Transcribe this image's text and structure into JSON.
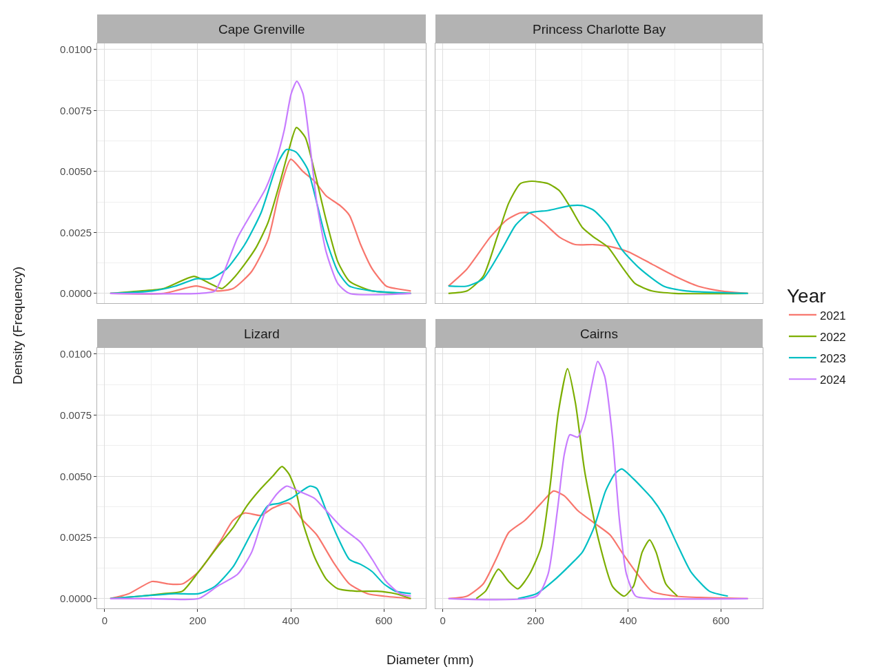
{
  "chart_data": [
    {
      "type": "line",
      "title": "Cape Grenville",
      "ylabel": "Density (Frequency)",
      "legend_title": "Year",
      "legend": "right",
      "grid": true,
      "tick_labels": "y",
      "xlim": [
        -16,
        690
      ],
      "xticks": [
        {
          "value": 0,
          "label": null
        },
        {
          "value": 200,
          "label": null
        },
        {
          "value": 400,
          "label": null
        },
        {
          "value": 600,
          "label": null
        }
      ],
      "ylim": [
        -0.0004,
        0.01025
      ],
      "yticks": [
        {
          "value": 0,
          "label": "0.0000"
        },
        {
          "value": 0.0025,
          "label": "0.0025"
        },
        {
          "value": 0.005,
          "label": "0.0050"
        },
        {
          "value": 0.0075,
          "label": "0.0075"
        },
        {
          "value": 0.01,
          "label": "0.0100"
        }
      ],
      "series": [
        {
          "name": "2021",
          "color": "#f8766d",
          "x": [
            12,
            127,
            197,
            242,
            276,
            316,
            351,
            376,
            400,
            426,
            451,
            476,
            506,
            526,
            550,
            575,
            605,
            625,
            658
          ],
          "values": [
            0,
            0,
            0.0003,
            0.0001,
            0.0002,
            0.0009,
            0.0022,
            0.0042,
            0.0055,
            0.005,
            0.0046,
            0.004,
            0.0036,
            0.0032,
            0.002,
            0.001,
            0.0003,
            0.0002,
            0.0001
          ]
        },
        {
          "name": "2022",
          "color": "#7cae00",
          "x": [
            12,
            77,
            127,
            192,
            227,
            252,
            276,
            301,
            326,
            351,
            376,
            396,
            412,
            431,
            451,
            476,
            501,
            526,
            575,
            658
          ],
          "values": [
            0,
            0.0001,
            0.0002,
            0.0007,
            0.0004,
            0.0002,
            0.0006,
            0.0012,
            0.0019,
            0.0029,
            0.0045,
            0.0059,
            0.0068,
            0.0064,
            0.005,
            0.003,
            0.0013,
            0.0005,
            0.0001,
            0
          ]
        },
        {
          "name": "2023",
          "color": "#00bfc4",
          "x": [
            12,
            102,
            152,
            197,
            227,
            262,
            301,
            336,
            371,
            391,
            411,
            436,
            456,
            476,
            501,
            526,
            575,
            658
          ],
          "values": [
            0,
            0.0001,
            0.0003,
            0.0006,
            0.0006,
            0.001,
            0.002,
            0.0033,
            0.0053,
            0.0059,
            0.0058,
            0.0051,
            0.0037,
            0.0022,
            0.0009,
            0.0003,
            0.0001,
            0
          ]
        },
        {
          "name": "2024",
          "color": "#c77cff",
          "x": [
            12,
            202,
            237,
            257,
            286,
            316,
            346,
            366,
            386,
            401,
            413,
            426,
            441,
            456,
            476,
            501,
            526,
            658
          ],
          "values": [
            0,
            0,
            0.0001,
            0.0009,
            0.0023,
            0.0033,
            0.0043,
            0.0053,
            0.0067,
            0.0082,
            0.0087,
            0.0082,
            0.0061,
            0.0037,
            0.0017,
            0.0004,
            0,
            0
          ]
        }
      ]
    },
    {
      "type": "line",
      "title": "Princess Charlotte Bay",
      "legend": "right",
      "grid": true,
      "tick_labels": false,
      "xlim": [
        -16,
        690
      ],
      "xticks": [
        {
          "value": 0,
          "label": null
        },
        {
          "value": 200,
          "label": null
        },
        {
          "value": 400,
          "label": null
        },
        {
          "value": 600,
          "label": null
        }
      ],
      "ylim": [
        -0.0004,
        0.01025
      ],
      "yticks": [
        {
          "value": 0,
          "label": null
        },
        {
          "value": 0.0025,
          "label": null
        },
        {
          "value": 0.005,
          "label": null
        },
        {
          "value": 0.0075,
          "label": null
        },
        {
          "value": 0.01,
          "label": null
        }
      ],
      "series": [
        {
          "name": "2021",
          "color": "#f8766d",
          "x": [
            12,
            52,
            102,
            137,
            167,
            187,
            217,
            252,
            286,
            326,
            366,
            401,
            451,
            501,
            550,
            600,
            658
          ],
          "values": [
            0.0003,
            0.001,
            0.0023,
            0.003,
            0.0033,
            0.0033,
            0.0029,
            0.0023,
            0.002,
            0.002,
            0.0019,
            0.0017,
            0.0012,
            0.0007,
            0.0003,
            0.0001,
            0
          ]
        },
        {
          "name": "2022",
          "color": "#7cae00",
          "x": [
            12,
            52,
            87,
            117,
            142,
            167,
            192,
            227,
            252,
            276,
            301,
            326,
            356,
            386,
            415,
            451,
            501,
            658
          ],
          "values": [
            0,
            0.0001,
            0.0007,
            0.0023,
            0.0037,
            0.0045,
            0.0046,
            0.0045,
            0.0042,
            0.0035,
            0.0027,
            0.0023,
            0.0019,
            0.0011,
            0.0004,
            0.0001,
            0,
            0
          ]
        },
        {
          "name": "2023",
          "color": "#00bfc4",
          "x": [
            12,
            52,
            87,
            127,
            157,
            187,
            227,
            276,
            301,
            326,
            356,
            386,
            426,
            476,
            526,
            658
          ],
          "values": [
            0.0003,
            0.0003,
            0.0006,
            0.0018,
            0.0028,
            0.0033,
            0.0034,
            0.0036,
            0.0036,
            0.0034,
            0.0028,
            0.0018,
            0.001,
            0.0003,
            0.0001,
            0
          ]
        }
      ]
    },
    {
      "type": "line",
      "title": "Lizard",
      "xlabel": "Diameter (mm)",
      "legend": "right",
      "grid": true,
      "xlim": [
        -16,
        690
      ],
      "xticks": [
        0,
        200,
        400,
        600
      ],
      "ylim": [
        -0.0004,
        0.01025
      ],
      "yticks": [
        {
          "value": 0,
          "label": "0.0000"
        },
        {
          "value": 0.0025,
          "label": "0.0025"
        },
        {
          "value": 0.005,
          "label": "0.0050"
        },
        {
          "value": 0.0075,
          "label": "0.0075"
        },
        {
          "value": 0.01,
          "label": "0.0100"
        }
      ],
      "series": [
        {
          "name": "2021",
          "color": "#f8766d",
          "x": [
            12,
            52,
            102,
            137,
            167,
            202,
            247,
            276,
            301,
            336,
            361,
            396,
            426,
            456,
            491,
            526,
            565,
            600,
            658
          ],
          "values": [
            0,
            0.0002,
            0.0007,
            0.0006,
            0.0006,
            0.0011,
            0.0023,
            0.0032,
            0.0035,
            0.0034,
            0.0037,
            0.0039,
            0.0032,
            0.0026,
            0.0015,
            0.0006,
            0.0002,
            0.0001,
            0
          ]
        },
        {
          "name": "2022",
          "color": "#7cae00",
          "x": [
            12,
            77,
            127,
            167,
            202,
            242,
            276,
            306,
            336,
            361,
            381,
            396,
            411,
            426,
            451,
            476,
            501,
            541,
            585,
            625,
            658
          ],
          "values": [
            0,
            0.0001,
            0.0002,
            0.0003,
            0.0011,
            0.0021,
            0.0029,
            0.0038,
            0.0045,
            0.005,
            0.0054,
            0.0051,
            0.0044,
            0.0031,
            0.0017,
            0.0008,
            0.0004,
            0.0003,
            0.0003,
            0.0002,
            0
          ]
        },
        {
          "name": "2023",
          "color": "#00bfc4",
          "x": [
            12,
            77,
            152,
            202,
            237,
            276,
            316,
            351,
            376,
            401,
            416,
            441,
            456,
            476,
            501,
            526,
            550,
            575,
            600,
            625,
            658
          ],
          "values": [
            0,
            0.0001,
            0.0002,
            0.0002,
            0.0005,
            0.0013,
            0.0027,
            0.0038,
            0.0039,
            0.0041,
            0.0043,
            0.0046,
            0.0045,
            0.0036,
            0.0025,
            0.0016,
            0.0014,
            0.0011,
            0.0006,
            0.0003,
            0.0002
          ]
        },
        {
          "name": "2024",
          "color": "#c77cff",
          "x": [
            12,
            102,
            202,
            242,
            286,
            316,
            346,
            371,
            391,
            416,
            451,
            476,
            510,
            550,
            575,
            605,
            635,
            658
          ],
          "values": [
            0,
            0,
            0,
            0.0005,
            0.001,
            0.0019,
            0.0036,
            0.0043,
            0.0046,
            0.0044,
            0.0041,
            0.0036,
            0.0029,
            0.0023,
            0.0016,
            0.0007,
            0.0002,
            0.0001
          ]
        }
      ]
    },
    {
      "type": "line",
      "title": "Cairns",
      "legend": "right",
      "grid": true,
      "tick_labels": "x",
      "xlim": [
        -16,
        690
      ],
      "xticks": [
        0,
        200,
        400,
        600
      ],
      "ylim": [
        -0.0004,
        0.01025
      ],
      "yticks": [
        {
          "value": 0,
          "label": null
        },
        {
          "value": 0.0025,
          "label": null
        },
        {
          "value": 0.005,
          "label": null
        },
        {
          "value": 0.0075,
          "label": null
        },
        {
          "value": 0.01,
          "label": null
        }
      ],
      "series": [
        {
          "name": "2021",
          "color": "#f8766d",
          "x": [
            12,
            52,
            87,
            117,
            142,
            177,
            212,
            239,
            262,
            291,
            326,
            361,
            386,
            416,
            451,
            501,
            658
          ],
          "values": [
            0,
            0.0001,
            0.0006,
            0.0017,
            0.0027,
            0.0032,
            0.0039,
            0.0044,
            0.0042,
            0.0036,
            0.0031,
            0.0026,
            0.0019,
            0.0011,
            0.0003,
            0.0001,
            0
          ]
        },
        {
          "name": "2022",
          "color": "#7cae00",
          "x": [
            72,
            92,
            120,
            142,
            162,
            187,
            212,
            232,
            249,
            269,
            286,
            306,
            336,
            366,
            391,
            411,
            430,
            446,
            460,
            481,
            506
          ],
          "values": [
            0,
            0.0003,
            0.0012,
            0.0007,
            0.0004,
            0.001,
            0.0021,
            0.0047,
            0.0076,
            0.0094,
            0.008,
            0.0052,
            0.0024,
            0.0005,
            0.0001,
            0.0005,
            0.0019,
            0.0024,
            0.0019,
            0.0006,
            0.0001
          ]
        },
        {
          "name": "2023",
          "color": "#00bfc4",
          "x": [
            162,
            202,
            237,
            276,
            301,
            326,
            351,
            371,
            386,
            411,
            451,
            476,
            506,
            535,
            575,
            615
          ],
          "values": [
            0,
            0.0002,
            0.0007,
            0.0014,
            0.0019,
            0.0029,
            0.0044,
            0.0051,
            0.0053,
            0.0049,
            0.0041,
            0.0034,
            0.0022,
            0.0011,
            0.0003,
            0.0001
          ]
        },
        {
          "name": "2024",
          "color": "#c77cff",
          "x": [
            12,
            202,
            227,
            247,
            262,
            274,
            291,
            306,
            321,
            334,
            349,
            366,
            381,
            396,
            416,
            451,
            658
          ],
          "values": [
            0,
            0.0001,
            0.001,
            0.0036,
            0.0059,
            0.0067,
            0.0066,
            0.0073,
            0.0087,
            0.0097,
            0.0091,
            0.0066,
            0.0032,
            0.001,
            0.0001,
            0,
            0
          ]
        }
      ]
    }
  ]
}
